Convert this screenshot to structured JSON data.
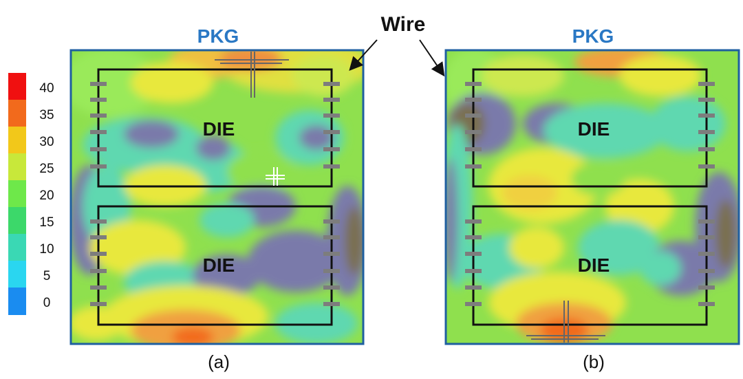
{
  "colorbar": {
    "ticks": [
      "40",
      "35",
      "30",
      "25",
      "20",
      "15",
      "10",
      "5",
      "0"
    ],
    "colors": [
      "#f01010",
      "#f26a1c",
      "#f2c81a",
      "#c8e83a",
      "#6ee84a",
      "#3cd86a",
      "#3ad8b4",
      "#2ad6f0",
      "#1a8cf0"
    ]
  },
  "panels": [
    {
      "pkg_label": "PKG",
      "die_top_label": "DIE",
      "die_bottom_label": "DIE",
      "caption": "(a)"
    },
    {
      "pkg_label": "PKG",
      "die_top_label": "DIE",
      "die_bottom_label": "DIE",
      "caption": "(b)"
    }
  ],
  "wire_label": "Wire",
  "palette": {
    "pkg_border": "#1f5fa0",
    "pkg_label": "#2a78c4",
    "base": "#8fe04e",
    "purple": "#7a7aaa",
    "teal": "#5fd8b0",
    "yellow": "#e8e83c",
    "orange": "#f0a040"
  }
}
